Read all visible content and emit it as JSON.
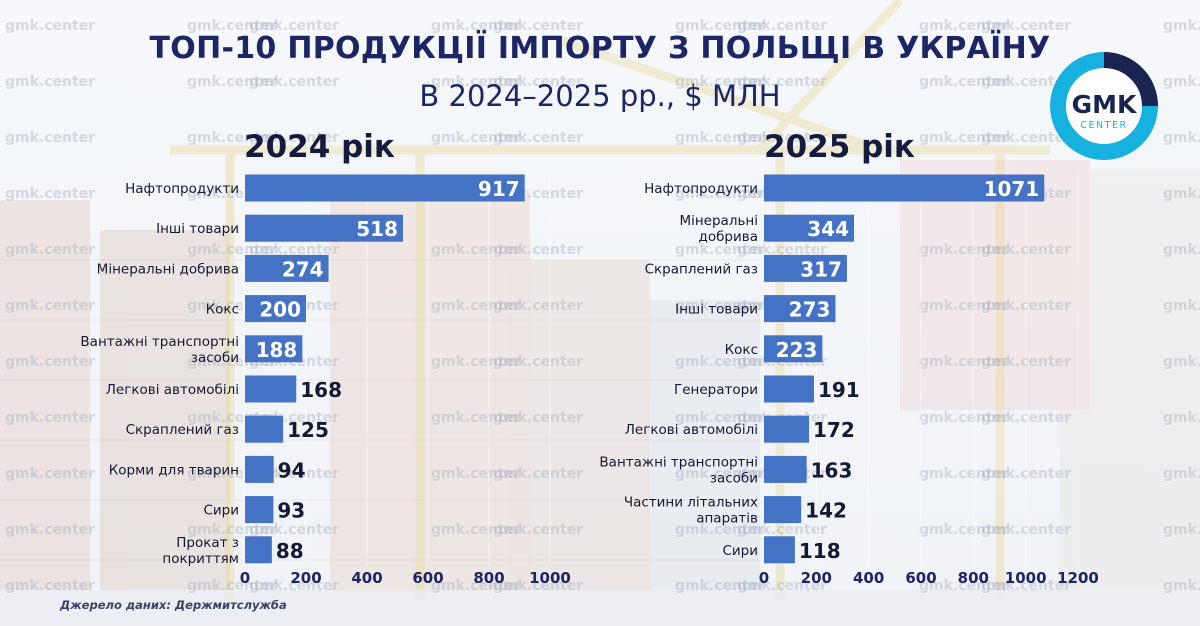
{
  "title": "ТОП-10 ПРОДУКЦІЇ ІМПОРТУ З ПОЛЬЩІ В УКРАЇНУ",
  "subtitle": "В 2024–2025 рр., $ МЛН",
  "source": "Джерело даних: Держмитслужба",
  "logo": {
    "top": "GMK",
    "bottom": "CENTER"
  },
  "watermark_text": "gmk.center",
  "colors": {
    "bar": "#4472c4",
    "title": "#1c2566",
    "logo_ring": "#17b1e0",
    "logo_dark": "#1b2450"
  },
  "chart_data": [
    {
      "type": "bar",
      "orientation": "horizontal",
      "title": "2024 рік",
      "categories": [
        [
          "Нафтопродукти"
        ],
        [
          "Інші товари"
        ],
        [
          "Мінеральні добрива"
        ],
        [
          "Кокс"
        ],
        [
          "Вантажні транспортні",
          "засоби"
        ],
        [
          "Легкові автомобілі"
        ],
        [
          "Скраплений газ"
        ],
        [
          "Корми для тварин"
        ],
        [
          "Сири"
        ],
        [
          "Прокат з",
          "покриттям"
        ]
      ],
      "values": [
        917,
        518,
        274,
        200,
        188,
        168,
        125,
        94,
        93,
        88
      ],
      "xlim": [
        0,
        1000
      ],
      "xticks": [
        0,
        200,
        400,
        600,
        800,
        1000
      ],
      "grid": true
    },
    {
      "type": "bar",
      "orientation": "horizontal",
      "title": "2025 рік",
      "categories": [
        [
          "Нафтопродукти"
        ],
        [
          "Мінеральні",
          "добрива"
        ],
        [
          "Скраплений газ"
        ],
        [
          "Інші товари"
        ],
        [
          "Кокс"
        ],
        [
          "Генератори"
        ],
        [
          "Легкові автомобілі"
        ],
        [
          "Вантажні транспортні",
          "засоби"
        ],
        [
          "Частини літальних",
          "апаратів"
        ],
        [
          "Сири"
        ]
      ],
      "values": [
        1071,
        344,
        317,
        273,
        223,
        191,
        172,
        163,
        142,
        118
      ],
      "xlim": [
        0,
        1200
      ],
      "xticks": [
        0,
        200,
        400,
        600,
        800,
        1000,
        1200
      ],
      "grid": true
    }
  ]
}
